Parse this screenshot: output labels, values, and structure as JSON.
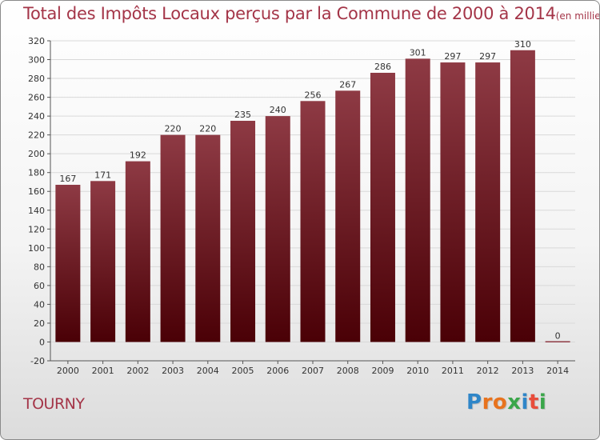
{
  "title": {
    "main": "Total des Impôts Locaux perçus par la Commune de 2000 à 2014",
    "unit": "(en milliers d'€)"
  },
  "commune": "TOURNY",
  "logo": {
    "text": "Proxiti",
    "letter_colors": [
      "#2f86c8",
      "#e8731e",
      "#e8731e",
      "#3aa64a",
      "#2f86c8",
      "#e84d3c",
      "#3aa64a"
    ]
  },
  "colors": {
    "bar_top": "#8e3a44",
    "bar_bottom": "#4a0006",
    "title": "#a43548"
  },
  "chart_data": {
    "type": "bar",
    "title": "Total des Impôts Locaux perçus par la Commune de 2000 à 2014",
    "xlabel": "",
    "ylabel": "",
    "categories": [
      "2000",
      "2001",
      "2002",
      "2003",
      "2004",
      "2005",
      "2006",
      "2007",
      "2008",
      "2009",
      "2010",
      "2011",
      "2012",
      "2013",
      "2014"
    ],
    "values": [
      167,
      171,
      192,
      220,
      220,
      235,
      240,
      256,
      267,
      286,
      301,
      297,
      297,
      310,
      0
    ],
    "ylim": [
      -20,
      320
    ],
    "yticks": [
      -20,
      0,
      20,
      40,
      60,
      80,
      100,
      120,
      140,
      160,
      180,
      200,
      220,
      240,
      260,
      280,
      300,
      320
    ],
    "grid": true
  }
}
